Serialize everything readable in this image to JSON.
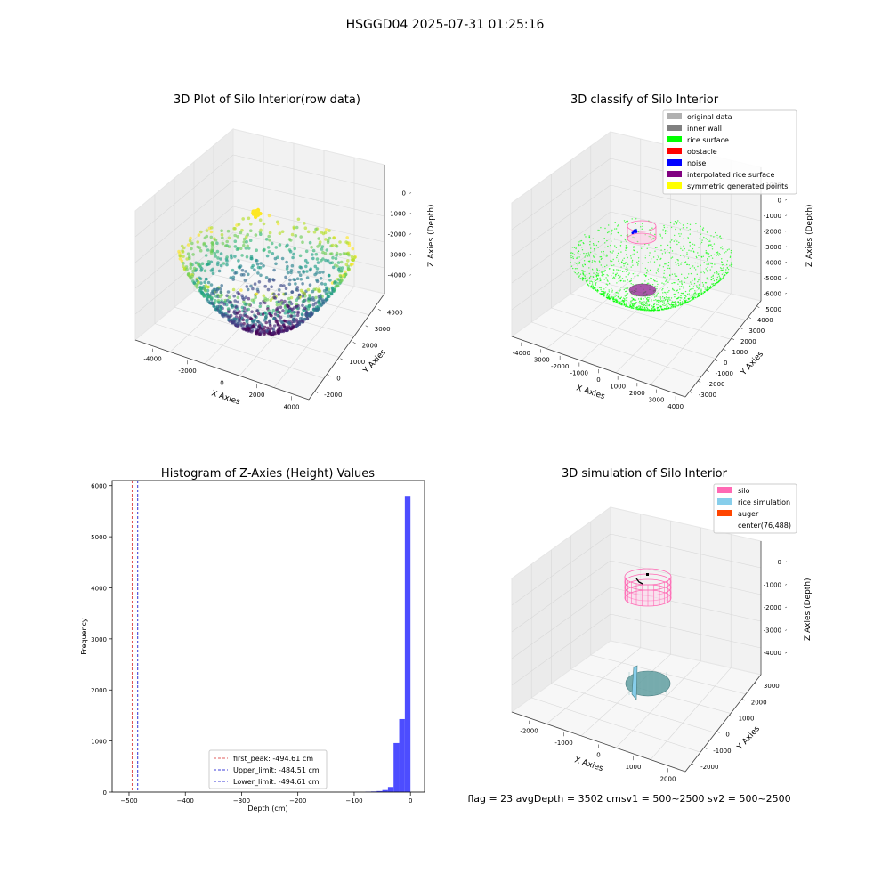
{
  "figure": {
    "suptitle": "HSGGD04 2025-07-31 01:25:16",
    "status_text": "flag = 23   avgDepth = 3502 cmsv1 = 500~2500  sv2 = 500~2500"
  },
  "chart_data": [
    {
      "type": "scatter",
      "title": "3D Plot of Silo Interior(row data)",
      "xlabel": "X Axies",
      "ylabel": "Y Axies",
      "zlabel": "Z Axies (Depth)",
      "x_ticks": [
        "-4000",
        "-2000",
        "0",
        "2000",
        "4000"
      ],
      "y_ticks": [
        "-2000",
        "0",
        "1000",
        "2000",
        "3000",
        "4000"
      ],
      "z_ticks": [
        "0",
        "-1000",
        "-2000",
        "-3000",
        "-4000"
      ],
      "xlim": [
        -4500,
        4500
      ],
      "ylim": [
        -2500,
        4500
      ],
      "zlim": [
        -4500,
        0
      ],
      "colormap": "viridis",
      "description_points": "hemispherical bowl of points colored by depth",
      "colors": {
        "low": "#440154",
        "mid": "#21918c",
        "high": "#fde725"
      }
    },
    {
      "type": "scatter",
      "title": "3D classify of Silo Interior",
      "xlabel": "X Axies",
      "ylabel": "Y Axies",
      "zlabel": "Z Axies (Depth)",
      "x_ticks": [
        "-4000",
        "-3000",
        "-2000",
        "-1000",
        "0",
        "1000",
        "2000",
        "3000",
        "4000"
      ],
      "y_ticks": [
        "-3000",
        "-2000",
        "-1000",
        "0",
        "1000",
        "2000",
        "3000",
        "4000",
        "5000"
      ],
      "z_ticks": [
        "1000",
        "0",
        "-1000",
        "-2000",
        "-3000",
        "-4000",
        "-5000",
        "-6000"
      ],
      "legend": [
        {
          "label": "original data",
          "color": "#b0b0b0"
        },
        {
          "label": "inner wall",
          "color": "#808080"
        },
        {
          "label": "rice surface",
          "color": "#00ff00"
        },
        {
          "label": "obstacle",
          "color": "#ff0000"
        },
        {
          "label": "noise",
          "color": "#0000ff"
        },
        {
          "label": "interpolated rice surface",
          "color": "#800080"
        },
        {
          "label": "symmetric generated points",
          "color": "#ffff00"
        }
      ],
      "legend_position": "top-right"
    },
    {
      "type": "bar",
      "title": "Histogram of Z-Axies (Height) Values",
      "xlabel": "Depth (cm)",
      "ylabel": "Frequency",
      "xlim": [
        -530,
        25
      ],
      "ylim": [
        0,
        6100
      ],
      "x_ticks": [
        -500,
        -400,
        -300,
        -200,
        -100,
        0
      ],
      "y_ticks": [
        0,
        1000,
        2000,
        3000,
        4000,
        5000,
        6000
      ],
      "bar_color": "#4d4dff",
      "bins": [
        {
          "x0": -80,
          "x1": -70,
          "value": 8
        },
        {
          "x0": -70,
          "x1": -60,
          "value": 12
        },
        {
          "x0": -60,
          "x1": -50,
          "value": 20
        },
        {
          "x0": -50,
          "x1": -40,
          "value": 40
        },
        {
          "x0": -40,
          "x1": -30,
          "value": 100
        },
        {
          "x0": -30,
          "x1": -20,
          "value": 960
        },
        {
          "x0": -20,
          "x1": -10,
          "value": 1430
        },
        {
          "x0": -10,
          "x1": 0,
          "value": 5800
        }
      ],
      "vlines": [
        {
          "label": "first_peak: -494.61 cm",
          "x": -494.61,
          "color": "#d62728"
        },
        {
          "label": "Upper_limit: -484.51 cm",
          "x": -484.51,
          "color": "#0000cc"
        },
        {
          "label": "Lower_limit: -494.61 cm",
          "x": -494.61,
          "color": "#0000cc"
        }
      ],
      "legend_position": "lower-center"
    },
    {
      "type": "scatter",
      "title": "3D simulation of Silo Interior",
      "xlabel": "X Axies",
      "ylabel": "Y Axies",
      "zlabel": "Z Axies (Depth)",
      "x_ticks": [
        "-2000",
        "-1000",
        "0",
        "1000",
        "2000"
      ],
      "y_ticks": [
        "-2000",
        "-1000",
        "0",
        "1000",
        "2000",
        "3000"
      ],
      "z_ticks": [
        "0",
        "-1000",
        "-2000",
        "-3000",
        "-4000"
      ],
      "legend": [
        {
          "label": "silo",
          "color": "#ff69b4"
        },
        {
          "label": "rice simulation",
          "color": "#87ceeb"
        },
        {
          "label": "auger",
          "color": "#ff4500"
        },
        {
          "label": "center(76,488)",
          "color": ""
        }
      ],
      "legend_position": "top-right"
    }
  ]
}
